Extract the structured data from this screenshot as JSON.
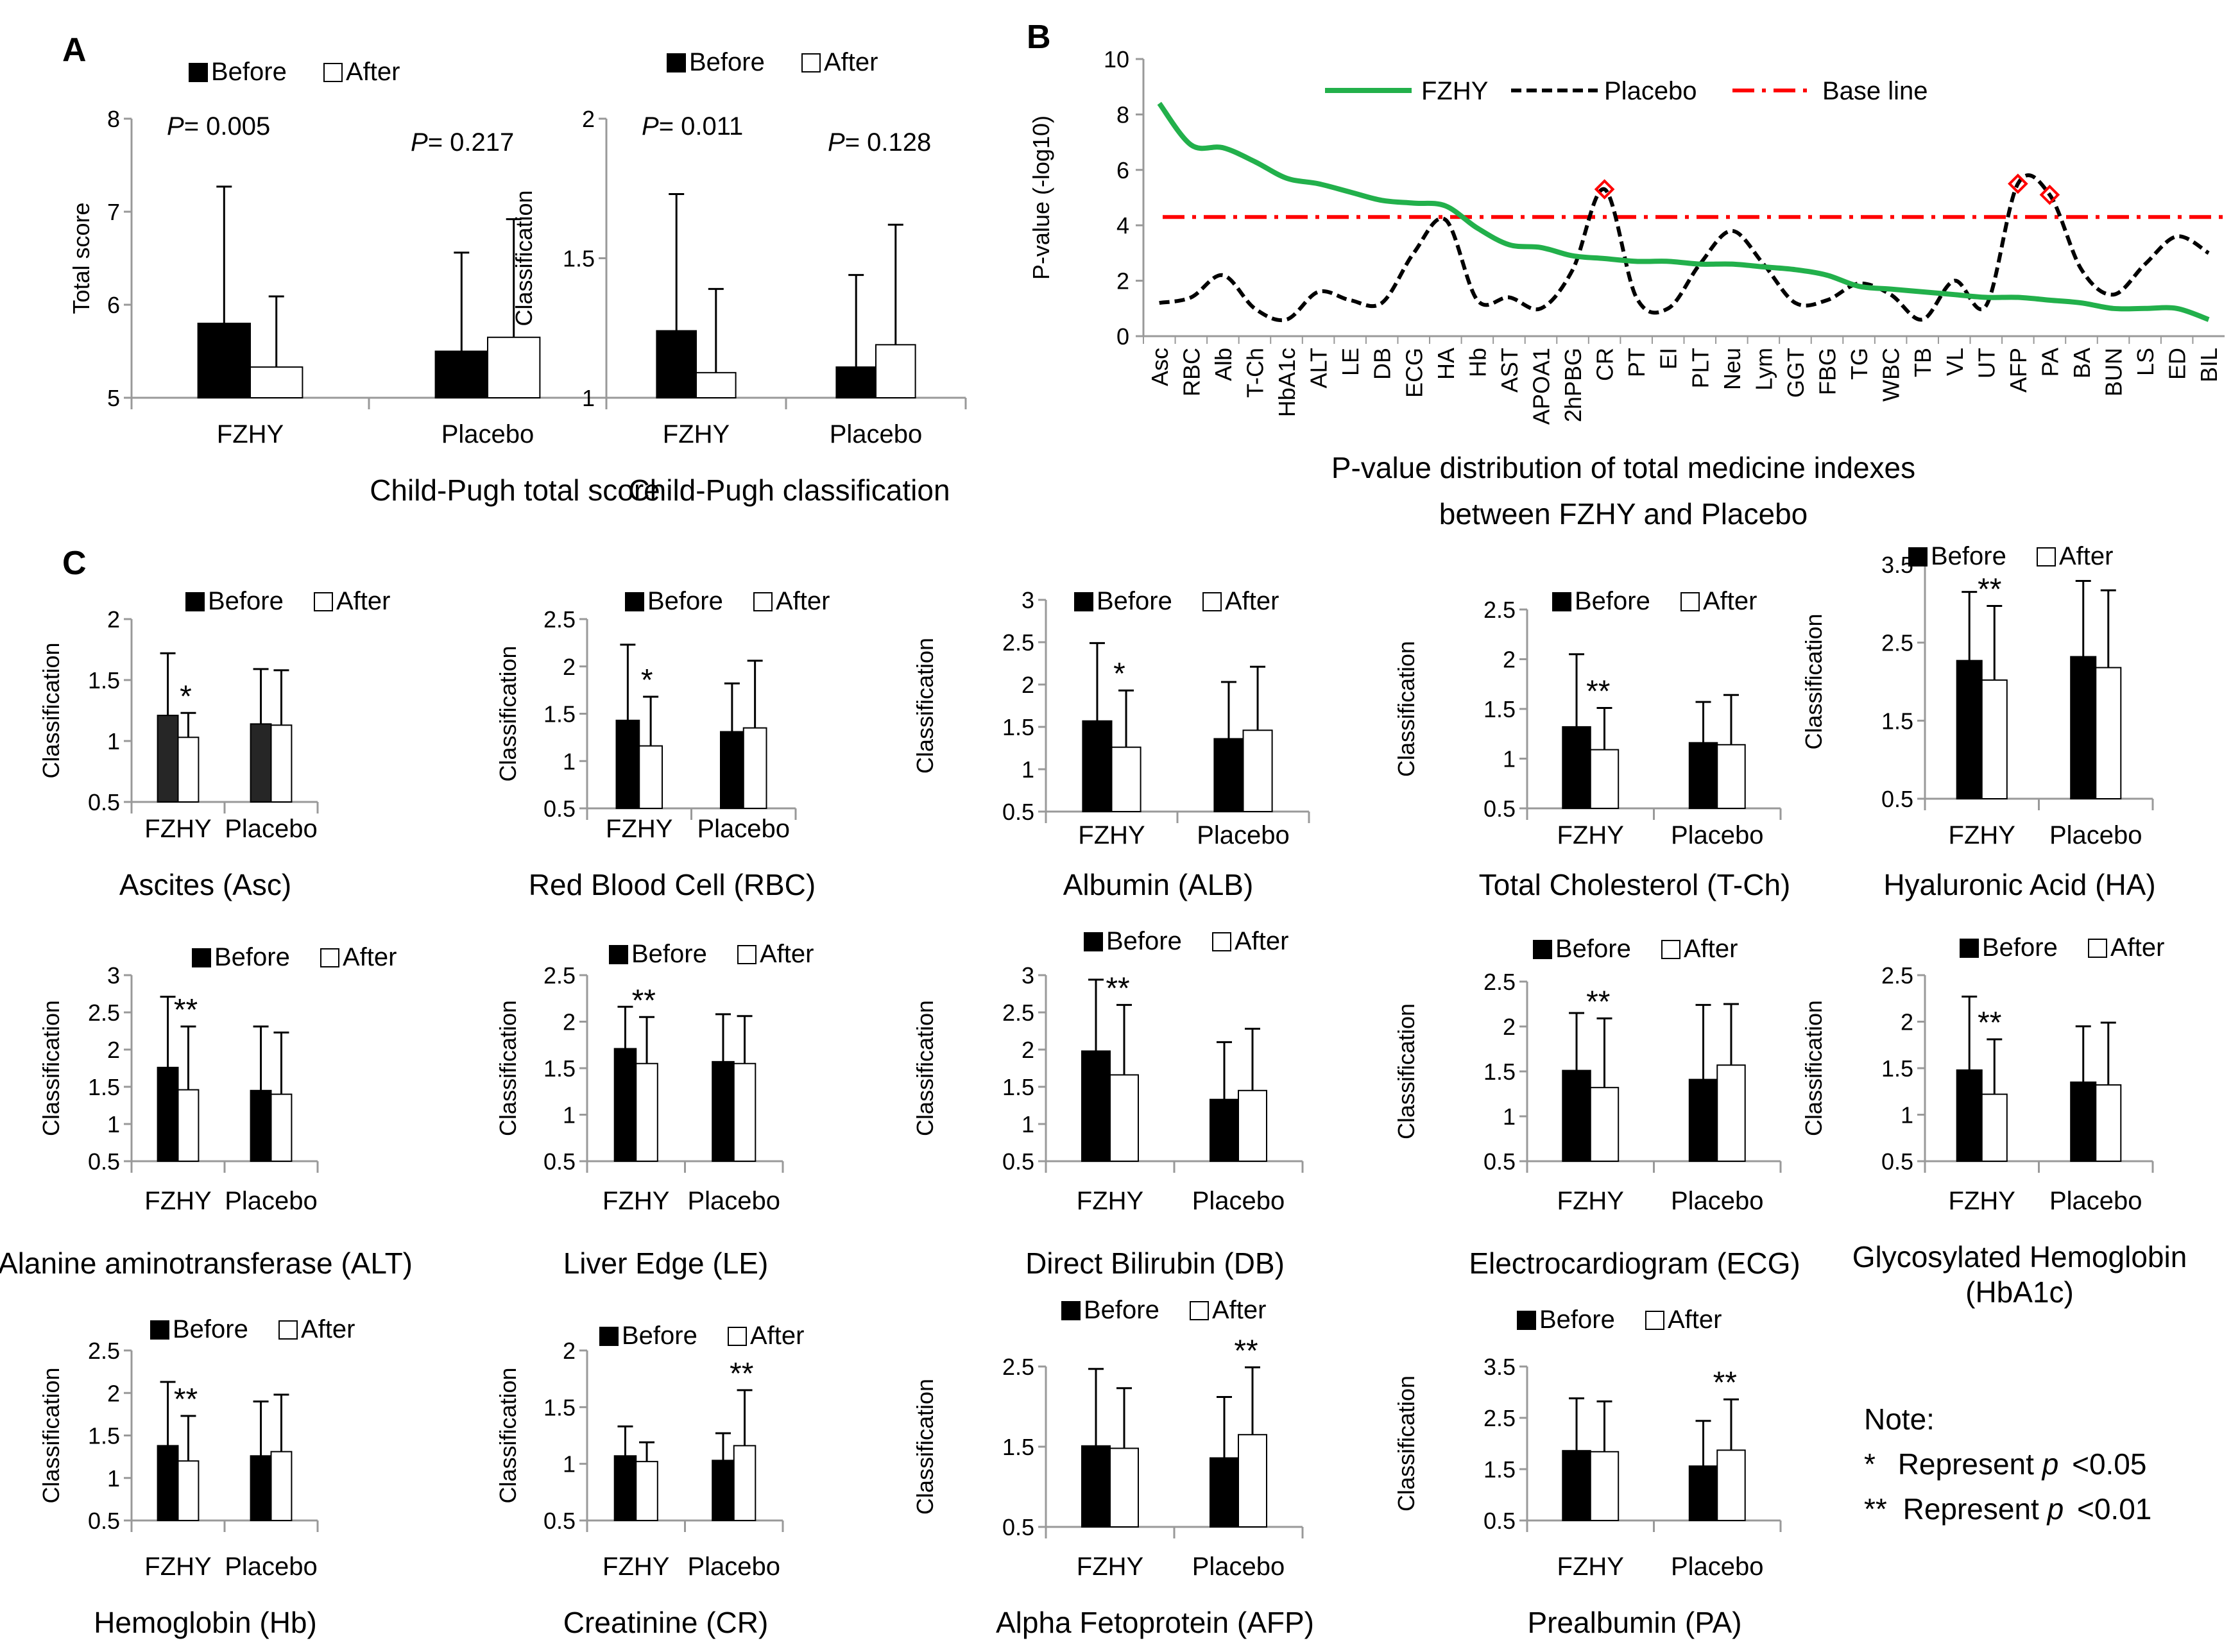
{
  "panel_labels": {
    "a": "A",
    "b": "B",
    "c": "C"
  },
  "note": {
    "title": "Note:",
    "line1_sym": "*",
    "line1_text": "Represent ",
    "line1_p": "p",
    "line1_val": "<0.05",
    "line2_sym": "**",
    "line2_text": "Represent ",
    "line2_p": "p",
    "line2_val": "<0.01"
  },
  "chart_data": [
    {
      "panel": "A",
      "type": "bar",
      "title": "Child-Pugh total score",
      "ylabel": "Total  score",
      "categories": [
        "FZHY",
        "Placebo"
      ],
      "ylim": [
        5,
        8
      ],
      "yticks": [
        "5",
        "6",
        "7",
        "8"
      ],
      "legend": [
        "Before",
        "After"
      ],
      "series": [
        {
          "name": "Before",
          "values": [
            5.8,
            5.5
          ],
          "err": [
            1.47,
            1.06
          ]
        },
        {
          "name": "After",
          "values": [
            5.33,
            5.65
          ],
          "err": [
            0.76,
            1.27
          ]
        }
      ],
      "annotations": [
        {
          "p_prefix": "P",
          "p_value": "= 0.005"
        },
        {
          "p_prefix": "P",
          "p_value": "= 0.217"
        }
      ]
    },
    {
      "panel": "A",
      "type": "bar",
      "title": "Child-Pugh classification",
      "ylabel": "Classification",
      "categories": [
        "FZHY",
        "Placebo"
      ],
      "ylim": [
        1,
        2
      ],
      "yticks": [
        "1",
        "1.5",
        "2"
      ],
      "legend": [
        "Before",
        "After"
      ],
      "series": [
        {
          "name": "Before",
          "values": [
            1.24,
            1.11
          ],
          "err": [
            0.49,
            0.33
          ]
        },
        {
          "name": "After",
          "values": [
            1.09,
            1.19
          ],
          "err": [
            0.3,
            0.43
          ]
        }
      ],
      "annotations": [
        {
          "p_prefix": "P",
          "p_value": "= 0.011"
        },
        {
          "p_prefix": "P",
          "p_value": "= 0.128"
        }
      ]
    },
    {
      "panel": "B",
      "type": "line",
      "title": "P-value distribution of total medicine indexes between FZHY and Placebo",
      "title_lines": [
        "P-value distribution of total medicine indexes",
        "between FZHY and Placebo"
      ],
      "ylabel": "P-value (-log10)",
      "ylim": [
        0,
        10
      ],
      "yticks": [
        "0",
        "2",
        "4",
        "6",
        "8",
        "10"
      ],
      "categories": [
        "Asc",
        "RBC",
        "Alb",
        "T-Ch",
        "HbA1c",
        "ALT",
        "LE",
        "DB",
        "ECG",
        "HA",
        "Hb",
        "AST",
        "APOA1",
        "2hPBG",
        "CR",
        "PT",
        "EI",
        "PLT",
        "Neu",
        "Lym",
        "GGT",
        "FBG",
        "TG",
        "WBC",
        "TB",
        "VL",
        "UT",
        "AFP",
        "PA",
        "BA",
        "BUN",
        "LS",
        "ED",
        "BIL"
      ],
      "legend": [
        "FZHY",
        "Placebo",
        "Base line"
      ],
      "series": [
        {
          "name": "FZHY",
          "color": "#22b04b",
          "values": [
            8.4,
            6.9,
            6.8,
            6.3,
            5.7,
            5.5,
            5.2,
            4.9,
            4.8,
            4.7,
            3.9,
            3.3,
            3.2,
            2.9,
            2.8,
            2.7,
            2.7,
            2.6,
            2.6,
            2.5,
            2.4,
            2.2,
            1.8,
            1.7,
            1.6,
            1.5,
            1.4,
            1.4,
            1.3,
            1.2,
            1.0,
            1.0,
            1.0,
            0.6
          ]
        },
        {
          "name": "Placebo",
          "color": "#000000",
          "values": [
            1.2,
            1.4,
            2.2,
            1.0,
            0.6,
            1.6,
            1.3,
            1.2,
            3.0,
            4.2,
            1.3,
            1.4,
            1.0,
            2.4,
            5.3,
            1.4,
            1.0,
            2.6,
            3.8,
            2.6,
            1.2,
            1.3,
            1.9,
            1.5,
            0.6,
            2.0,
            1.1,
            5.5,
            5.1,
            2.4,
            1.5,
            2.6,
            3.6,
            3.0
          ]
        },
        {
          "name": "Base line",
          "color": "#ff0000",
          "value": 4.3
        }
      ],
      "markers": [
        "CR",
        "AFP",
        "PA"
      ]
    },
    {
      "panel": "C",
      "type": "bar",
      "title_lines": [
        "Ascites (Asc)"
      ],
      "ylabel": "Classification",
      "categories": [
        "FZHY",
        "Placebo"
      ],
      "ylim": [
        0.5,
        2
      ],
      "yticks": [
        "0.5",
        "1",
        "1.5",
        "2"
      ],
      "legend": [
        "Before",
        "After"
      ],
      "series": [
        {
          "name": "Before",
          "values": [
            1.21,
            1.14
          ],
          "err": [
            0.51,
            0.45
          ]
        },
        {
          "name": "After",
          "values": [
            1.03,
            1.13
          ],
          "err": [
            0.2,
            0.45
          ]
        }
      ],
      "sig": [
        {
          "text": "*",
          "group": 0
        },
        {
          "text": "",
          "group": 1
        }
      ]
    },
    {
      "panel": "C",
      "type": "bar",
      "title_lines": [
        "Red Blood Cell (RBC)"
      ],
      "ylabel": "Classification",
      "categories": [
        "FZHY",
        "Placebo"
      ],
      "ylim": [
        0.5,
        2.5
      ],
      "yticks": [
        "0.5",
        "1",
        "1.5",
        "2",
        "2.5"
      ],
      "legend": [
        "Before",
        "After"
      ],
      "series": [
        {
          "name": "Before",
          "values": [
            1.43,
            1.31
          ],
          "err": [
            0.8,
            0.51
          ]
        },
        {
          "name": "After",
          "values": [
            1.16,
            1.35
          ],
          "err": [
            0.52,
            0.71
          ]
        }
      ],
      "sig": [
        {
          "text": "*",
          "group": 0
        },
        {
          "text": "",
          "group": 1
        }
      ]
    },
    {
      "panel": "C",
      "type": "bar",
      "title_lines": [
        "Albumin (ALB)"
      ],
      "ylabel": "Classification",
      "categories": [
        "FZHY",
        "Placebo"
      ],
      "ylim": [
        0.5,
        3
      ],
      "yticks": [
        "0.5",
        "1",
        "1.5",
        "2",
        "2.5",
        "3"
      ],
      "legend": [
        "Before",
        "After"
      ],
      "series": [
        {
          "name": "Before",
          "values": [
            1.57,
            1.36
          ],
          "err": [
            0.92,
            0.67
          ]
        },
        {
          "name": "After",
          "values": [
            1.26,
            1.46
          ],
          "err": [
            0.67,
            0.75
          ]
        }
      ],
      "sig": [
        {
          "text": "*",
          "group": 0
        },
        {
          "text": "",
          "group": 1
        }
      ]
    },
    {
      "panel": "C",
      "type": "bar",
      "title_lines": [
        "Total Cholesterol (T-Ch)"
      ],
      "ylabel": "Classification",
      "categories": [
        "FZHY",
        "Placebo"
      ],
      "ylim": [
        0.5,
        2.5
      ],
      "yticks": [
        "0.5",
        "1",
        "1.5",
        "2",
        "2.5"
      ],
      "legend": [
        "Before",
        "After"
      ],
      "series": [
        {
          "name": "Before",
          "values": [
            1.32,
            1.16
          ],
          "err": [
            0.73,
            0.41
          ]
        },
        {
          "name": "After",
          "values": [
            1.09,
            1.14
          ],
          "err": [
            0.42,
            0.5
          ]
        }
      ],
      "sig": [
        {
          "text": "**",
          "group": 0
        },
        {
          "text": "",
          "group": 1
        }
      ]
    },
    {
      "panel": "C",
      "type": "bar",
      "title_lines": [
        "Hyaluronic Acid (HA)"
      ],
      "ylabel": "Classification",
      "categories": [
        "FZHY",
        "Placebo"
      ],
      "ylim": [
        0.5,
        3.5
      ],
      "yticks": [
        "0.5",
        "1.5",
        "2.5",
        "3.5"
      ],
      "legend": [
        "Before",
        "After"
      ],
      "series": [
        {
          "name": "Before",
          "values": [
            2.27,
            2.32
          ],
          "err": [
            0.88,
            0.97
          ]
        },
        {
          "name": "After",
          "values": [
            2.02,
            2.18
          ],
          "err": [
            0.95,
            0.99
          ]
        }
      ],
      "sig": [
        {
          "text": "**",
          "group": 0
        },
        {
          "text": "",
          "group": 1
        }
      ]
    },
    {
      "panel": "C",
      "type": "bar",
      "title_lines": [
        "Alanine aminotransferase (ALT)"
      ],
      "ylabel": "Classification",
      "categories": [
        "FZHY",
        "Placebo"
      ],
      "ylim": [
        0.5,
        3
      ],
      "yticks": [
        "0.5",
        "1",
        "1.5",
        "2",
        "2.5",
        "3"
      ],
      "legend": [
        "Before",
        "After"
      ],
      "series": [
        {
          "name": "Before",
          "values": [
            1.76,
            1.45
          ],
          "err": [
            0.95,
            0.86
          ]
        },
        {
          "name": "After",
          "values": [
            1.46,
            1.4
          ],
          "err": [
            0.85,
            0.83
          ]
        }
      ],
      "sig": [
        {
          "text": "**",
          "group": 0
        },
        {
          "text": "",
          "group": 1
        }
      ]
    },
    {
      "panel": "C",
      "type": "bar",
      "title_lines": [
        "Liver Edge (LE)"
      ],
      "ylabel": "Classification",
      "categories": [
        "FZHY",
        "Placebo"
      ],
      "ylim": [
        0.5,
        2.5
      ],
      "yticks": [
        "0.5",
        "1",
        "1.5",
        "2",
        "2.5"
      ],
      "legend": [
        "Before",
        "After"
      ],
      "series": [
        {
          "name": "Before",
          "values": [
            1.71,
            1.57
          ],
          "err": [
            0.45,
            0.51
          ]
        },
        {
          "name": "After",
          "values": [
            1.55,
            1.55
          ],
          "err": [
            0.5,
            0.51
          ]
        }
      ],
      "sig": [
        {
          "text": "**",
          "group": 0
        },
        {
          "text": "",
          "group": 1
        }
      ]
    },
    {
      "panel": "C",
      "type": "bar",
      "title_lines": [
        "Direct Bilirubin (DB)"
      ],
      "ylabel": "Classification",
      "categories": [
        "FZHY",
        "Placebo"
      ],
      "ylim": [
        0.5,
        3
      ],
      "yticks": [
        "0.5",
        "1",
        "1.5",
        "2",
        "2.5",
        "3"
      ],
      "legend": [
        "Before",
        "After"
      ],
      "series": [
        {
          "name": "Before",
          "values": [
            1.98,
            1.33
          ],
          "err": [
            0.96,
            0.77
          ]
        },
        {
          "name": "After",
          "values": [
            1.66,
            1.45
          ],
          "err": [
            0.94,
            0.83
          ]
        }
      ],
      "sig": [
        {
          "text": "**",
          "group": 0
        },
        {
          "text": "",
          "group": 1
        }
      ]
    },
    {
      "panel": "C",
      "type": "bar",
      "title_lines": [
        "Electrocardiogram (ECG)"
      ],
      "ylabel": "Classification",
      "categories": [
        "FZHY",
        "Placebo"
      ],
      "ylim": [
        0.5,
        2.5
      ],
      "yticks": [
        "0.5",
        "1",
        "1.5",
        "2",
        "2.5"
      ],
      "legend": [
        "Before",
        "After"
      ],
      "series": [
        {
          "name": "Before",
          "values": [
            1.51,
            1.41
          ],
          "err": [
            0.64,
            0.83
          ]
        },
        {
          "name": "After",
          "values": [
            1.32,
            1.57
          ],
          "err": [
            0.77,
            0.68
          ]
        }
      ],
      "sig": [
        {
          "text": "**",
          "group": 0
        },
        {
          "text": "",
          "group": 1
        }
      ]
    },
    {
      "panel": "C",
      "type": "bar",
      "title_lines": [
        "Glycosylated Hemoglobin",
        "(HbA1c)"
      ],
      "ylabel": "Classification",
      "categories": [
        "FZHY",
        "Placebo"
      ],
      "ylim": [
        0.5,
        2.5
      ],
      "yticks": [
        "0.5",
        "1",
        "1.5",
        "2",
        "2.5"
      ],
      "legend": [
        "Before",
        "After"
      ],
      "series": [
        {
          "name": "Before",
          "values": [
            1.48,
            1.35
          ],
          "err": [
            0.79,
            0.6
          ]
        },
        {
          "name": "After",
          "values": [
            1.22,
            1.32
          ],
          "err": [
            0.59,
            0.67
          ]
        }
      ],
      "sig": [
        {
          "text": "**",
          "group": 0
        },
        {
          "text": "",
          "group": 1
        }
      ]
    },
    {
      "panel": "C",
      "type": "bar",
      "title_lines": [
        "Hemoglobin (Hb)"
      ],
      "ylabel": "Classification",
      "categories": [
        "FZHY",
        "Placebo"
      ],
      "ylim": [
        0.5,
        2.5
      ],
      "yticks": [
        "0.5",
        "1",
        "1.5",
        "2",
        "2.5"
      ],
      "legend": [
        "Before",
        "After"
      ],
      "series": [
        {
          "name": "Before",
          "values": [
            1.38,
            1.26
          ],
          "err": [
            0.75,
            0.64
          ]
        },
        {
          "name": "After",
          "values": [
            1.2,
            1.31
          ],
          "err": [
            0.53,
            0.67
          ]
        }
      ],
      "sig": [
        {
          "text": "**",
          "group": 0
        },
        {
          "text": "",
          "group": 1
        }
      ]
    },
    {
      "panel": "C",
      "type": "bar",
      "title_lines": [
        "Creatinine (CR)"
      ],
      "ylabel": "Classification",
      "categories": [
        "FZHY",
        "Placebo"
      ],
      "ylim": [
        0.5,
        2
      ],
      "yticks": [
        "0.5",
        "1",
        "1.5",
        "2"
      ],
      "legend": [
        "Before",
        "After"
      ],
      "series": [
        {
          "name": "Before",
          "values": [
            1.07,
            1.03
          ],
          "err": [
            0.26,
            0.24
          ]
        },
        {
          "name": "After",
          "values": [
            1.02,
            1.16
          ],
          "err": [
            0.17,
            0.49
          ]
        }
      ],
      "sig": [
        {
          "text": "",
          "group": 0
        },
        {
          "text": "**",
          "group": 1
        }
      ]
    },
    {
      "panel": "C",
      "type": "bar",
      "title_lines": [
        "Alpha Fetoprotein (AFP)"
      ],
      "ylabel": "Classification",
      "categories": [
        "FZHY",
        "Placebo"
      ],
      "ylim": [
        0.5,
        2.5
      ],
      "yticks": [
        "0.5",
        "1.5",
        "2.5"
      ],
      "legend": [
        "Before",
        "After"
      ],
      "series": [
        {
          "name": "Before",
          "values": [
            1.51,
            1.36
          ],
          "err": [
            0.96,
            0.76
          ]
        },
        {
          "name": "After",
          "values": [
            1.48,
            1.65
          ],
          "err": [
            0.75,
            0.84
          ]
        }
      ],
      "sig": [
        {
          "text": "",
          "group": 0
        },
        {
          "text": "**",
          "group": 1
        }
      ]
    },
    {
      "panel": "C",
      "type": "bar",
      "title_lines": [
        "Prealbumin (PA)"
      ],
      "ylabel": "Classification",
      "categories": [
        "FZHY",
        "Placebo"
      ],
      "ylim": [
        0.5,
        3.5
      ],
      "yticks": [
        "0.5",
        "1.5",
        "2.5",
        "3.5"
      ],
      "legend": [
        "Before",
        "After"
      ],
      "series": [
        {
          "name": "Before",
          "values": [
            1.86,
            1.56
          ],
          "err": [
            1.02,
            0.88
          ]
        },
        {
          "name": "After",
          "values": [
            1.84,
            1.87
          ],
          "err": [
            0.98,
            0.99
          ]
        }
      ],
      "sig": [
        {
          "text": "",
          "group": 0
        },
        {
          "text": "**",
          "group": 1
        }
      ]
    }
  ]
}
